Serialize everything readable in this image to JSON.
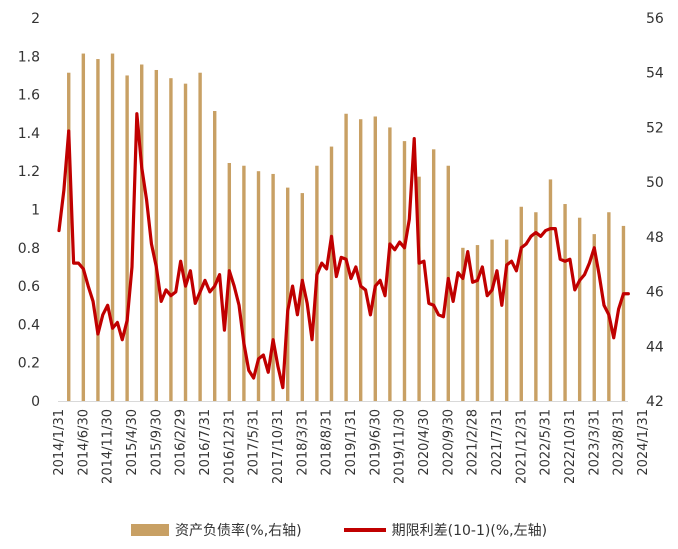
{
  "chart_data": {
    "type": "bar+line",
    "title": "",
    "x_tick_labels": [
      "2014/1/31",
      "2014/6/30",
      "2014/11/30",
      "2015/4/30",
      "2015/9/30",
      "2016/2/29",
      "2016/7/31",
      "2016/12/31",
      "2017/5/31",
      "2017/10/31",
      "2018/3/31",
      "2018/8/31",
      "2019/1/31",
      "2019/6/30",
      "2019/11/30",
      "2020/4/30",
      "2020/9/30",
      "2021/2/28",
      "2021/7/31",
      "2021/12/31",
      "2022/5/31",
      "2022/10/31",
      "2023/3/31",
      "2023/8/31",
      "2024/1/31"
    ],
    "y_left": {
      "ticks": [
        "0",
        "0.2",
        "0.4",
        "0.6",
        "0.8",
        "1",
        "1.2",
        "1.4",
        "1.6",
        "1.8",
        "2"
      ],
      "range": [
        0,
        2
      ]
    },
    "y_right": {
      "ticks": [
        "42",
        "44",
        "46",
        "48",
        "50",
        "52",
        "54",
        "56"
      ],
      "range": [
        42,
        56
      ]
    },
    "series": [
      {
        "name": "资产负债率(%,右轴)",
        "type": "bar",
        "axis": "right",
        "color": "#C8A064",
        "points": [
          {
            "x": 2,
            "y": 54.0
          },
          {
            "x": 5,
            "y": 54.7
          },
          {
            "x": 8,
            "y": 54.5
          },
          {
            "x": 11,
            "y": 54.7
          },
          {
            "x": 14,
            "y": 53.9
          },
          {
            "x": 17,
            "y": 54.3
          },
          {
            "x": 20,
            "y": 54.1
          },
          {
            "x": 23,
            "y": 53.8
          },
          {
            "x": 26,
            "y": 53.6
          },
          {
            "x": 29,
            "y": 54.0
          },
          {
            "x": 32,
            "y": 52.6
          },
          {
            "x": 35,
            "y": 50.7
          },
          {
            "x": 38,
            "y": 50.6
          },
          {
            "x": 41,
            "y": 50.4
          },
          {
            "x": 44,
            "y": 50.3
          },
          {
            "x": 47,
            "y": 49.8
          },
          {
            "x": 50,
            "y": 49.6
          },
          {
            "x": 53,
            "y": 50.6
          },
          {
            "x": 56,
            "y": 51.3
          },
          {
            "x": 59,
            "y": 52.5
          },
          {
            "x": 62,
            "y": 52.3
          },
          {
            "x": 65,
            "y": 52.4
          },
          {
            "x": 68,
            "y": 52.0
          },
          {
            "x": 71,
            "y": 51.5
          },
          {
            "x": 74,
            "y": 50.2
          },
          {
            "x": 77,
            "y": 51.2
          },
          {
            "x": 80,
            "y": 50.6
          },
          {
            "x": 83,
            "y": 47.6
          },
          {
            "x": 86,
            "y": 47.7
          },
          {
            "x": 89,
            "y": 47.9
          },
          {
            "x": 92,
            "y": 47.9
          },
          {
            "x": 95,
            "y": 49.1
          },
          {
            "x": 98,
            "y": 48.9
          },
          {
            "x": 101,
            "y": 50.1
          },
          {
            "x": 104,
            "y": 49.2
          },
          {
            "x": 107,
            "y": 48.7
          },
          {
            "x": 110,
            "y": 48.1
          },
          {
            "x": 113,
            "y": 48.9
          },
          {
            "x": 116,
            "y": 48.4
          }
        ]
      },
      {
        "name": "期限利差(10-1)(%,左轴)",
        "type": "line",
        "axis": "left",
        "color": "#C00000",
        "points": [
          {
            "x": 0,
            "y": 0.89
          },
          {
            "x": 1,
            "y": 1.1
          },
          {
            "x": 2,
            "y": 1.41
          },
          {
            "x": 3,
            "y": 0.72
          },
          {
            "x": 4,
            "y": 0.72
          },
          {
            "x": 5,
            "y": 0.69
          },
          {
            "x": 6,
            "y": 0.6
          },
          {
            "x": 7,
            "y": 0.52
          },
          {
            "x": 8,
            "y": 0.35
          },
          {
            "x": 9,
            "y": 0.45
          },
          {
            "x": 10,
            "y": 0.5
          },
          {
            "x": 11,
            "y": 0.38
          },
          {
            "x": 12,
            "y": 0.41
          },
          {
            "x": 13,
            "y": 0.32
          },
          {
            "x": 14,
            "y": 0.42
          },
          {
            "x": 15,
            "y": 0.7
          },
          {
            "x": 16,
            "y": 1.5
          },
          {
            "x": 17,
            "y": 1.22
          },
          {
            "x": 18,
            "y": 1.05
          },
          {
            "x": 19,
            "y": 0.82
          },
          {
            "x": 20,
            "y": 0.7
          },
          {
            "x": 21,
            "y": 0.52
          },
          {
            "x": 22,
            "y": 0.58
          },
          {
            "x": 23,
            "y": 0.55
          },
          {
            "x": 24,
            "y": 0.57
          },
          {
            "x": 25,
            "y": 0.73
          },
          {
            "x": 26,
            "y": 0.6
          },
          {
            "x": 27,
            "y": 0.68
          },
          {
            "x": 28,
            "y": 0.51
          },
          {
            "x": 29,
            "y": 0.57
          },
          {
            "x": 30,
            "y": 0.63
          },
          {
            "x": 31,
            "y": 0.57
          },
          {
            "x": 32,
            "y": 0.6
          },
          {
            "x": 33,
            "y": 0.66
          },
          {
            "x": 34,
            "y": 0.37
          },
          {
            "x": 35,
            "y": 0.68
          },
          {
            "x": 36,
            "y": 0.6
          },
          {
            "x": 37,
            "y": 0.5
          },
          {
            "x": 38,
            "y": 0.3
          },
          {
            "x": 39,
            "y": 0.16
          },
          {
            "x": 40,
            "y": 0.12
          },
          {
            "x": 41,
            "y": 0.22
          },
          {
            "x": 42,
            "y": 0.24
          },
          {
            "x": 43,
            "y": 0.15
          },
          {
            "x": 44,
            "y": 0.32
          },
          {
            "x": 45,
            "y": 0.18
          },
          {
            "x": 46,
            "y": 0.07
          },
          {
            "x": 47,
            "y": 0.47
          },
          {
            "x": 48,
            "y": 0.6
          },
          {
            "x": 49,
            "y": 0.45
          },
          {
            "x": 50,
            "y": 0.63
          },
          {
            "x": 51,
            "y": 0.51
          },
          {
            "x": 52,
            "y": 0.32
          },
          {
            "x": 53,
            "y": 0.66
          },
          {
            "x": 54,
            "y": 0.72
          },
          {
            "x": 55,
            "y": 0.69
          },
          {
            "x": 56,
            "y": 0.86
          },
          {
            "x": 57,
            "y": 0.65
          },
          {
            "x": 58,
            "y": 0.75
          },
          {
            "x": 59,
            "y": 0.74
          },
          {
            "x": 60,
            "y": 0.64
          },
          {
            "x": 61,
            "y": 0.7
          },
          {
            "x": 62,
            "y": 0.6
          },
          {
            "x": 63,
            "y": 0.58
          },
          {
            "x": 64,
            "y": 0.45
          },
          {
            "x": 65,
            "y": 0.6
          },
          {
            "x": 66,
            "y": 0.63
          },
          {
            "x": 67,
            "y": 0.55
          },
          {
            "x": 68,
            "y": 0.82
          },
          {
            "x": 69,
            "y": 0.79
          },
          {
            "x": 70,
            "y": 0.83
          },
          {
            "x": 71,
            "y": 0.8
          },
          {
            "x": 72,
            "y": 0.95
          },
          {
            "x": 73,
            "y": 1.37
          },
          {
            "x": 74,
            "y": 0.72
          },
          {
            "x": 75,
            "y": 0.73
          },
          {
            "x": 76,
            "y": 0.51
          },
          {
            "x": 77,
            "y": 0.5
          },
          {
            "x": 78,
            "y": 0.45
          },
          {
            "x": 79,
            "y": 0.44
          },
          {
            "x": 80,
            "y": 0.64
          },
          {
            "x": 81,
            "y": 0.52
          },
          {
            "x": 82,
            "y": 0.67
          },
          {
            "x": 83,
            "y": 0.64
          },
          {
            "x": 84,
            "y": 0.78
          },
          {
            "x": 85,
            "y": 0.62
          },
          {
            "x": 86,
            "y": 0.63
          },
          {
            "x": 87,
            "y": 0.7
          },
          {
            "x": 88,
            "y": 0.55
          },
          {
            "x": 89,
            "y": 0.58
          },
          {
            "x": 90,
            "y": 0.68
          },
          {
            "x": 91,
            "y": 0.5
          },
          {
            "x": 92,
            "y": 0.71
          },
          {
            "x": 93,
            "y": 0.73
          },
          {
            "x": 94,
            "y": 0.68
          },
          {
            "x": 95,
            "y": 0.8
          },
          {
            "x": 96,
            "y": 0.82
          },
          {
            "x": 97,
            "y": 0.86
          },
          {
            "x": 98,
            "y": 0.88
          },
          {
            "x": 99,
            "y": 0.86
          },
          {
            "x": 100,
            "y": 0.89
          },
          {
            "x": 101,
            "y": 0.9
          },
          {
            "x": 102,
            "y": 0.9
          },
          {
            "x": 103,
            "y": 0.74
          },
          {
            "x": 104,
            "y": 0.73
          },
          {
            "x": 105,
            "y": 0.74
          },
          {
            "x": 106,
            "y": 0.58
          },
          {
            "x": 107,
            "y": 0.63
          },
          {
            "x": 108,
            "y": 0.66
          },
          {
            "x": 109,
            "y": 0.72
          },
          {
            "x": 110,
            "y": 0.8
          },
          {
            "x": 111,
            "y": 0.66
          },
          {
            "x": 112,
            "y": 0.5
          },
          {
            "x": 113,
            "y": 0.45
          },
          {
            "x": 114,
            "y": 0.33
          },
          {
            "x": 115,
            "y": 0.48
          },
          {
            "x": 116,
            "y": 0.56
          },
          {
            "x": 117,
            "y": 0.56
          }
        ]
      }
    ],
    "legend_placement": "bottom-center",
    "grid": false
  }
}
